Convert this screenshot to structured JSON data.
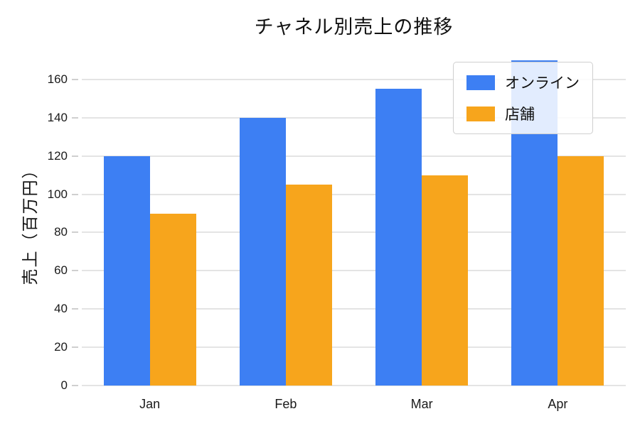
{
  "chart_data": {
    "type": "bar",
    "title": "チャネル別売上の推移",
    "ylabel": "売上（百万円）",
    "categories": [
      "Jan",
      "Feb",
      "Mar",
      "Apr"
    ],
    "series": [
      {
        "name": "オンライン",
        "color": "#3d7ff3",
        "values": [
          120,
          140,
          155,
          170
        ]
      },
      {
        "name": "店舗",
        "color": "#f7a51c",
        "values": [
          90,
          105,
          110,
          120
        ]
      }
    ],
    "ylim": [
      0,
      170
    ],
    "ytick_step": 20,
    "yticks": [
      0,
      20,
      40,
      60,
      80,
      100,
      120,
      140,
      160
    ],
    "grid": "horizontal",
    "gridline_color": "#e4e4e4",
    "tick_color": "#cfcfcf",
    "legend_position": "top-right",
    "background": "#ffffff"
  }
}
